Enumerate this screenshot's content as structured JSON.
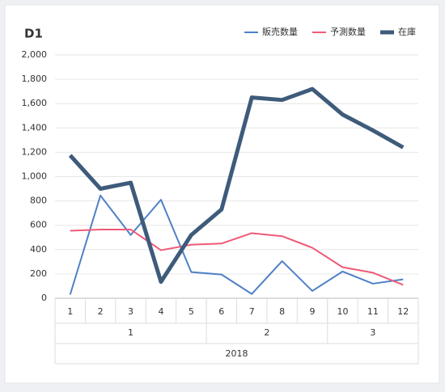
{
  "chart_data": {
    "type": "line",
    "title": "D1",
    "categories": [
      "1",
      "2",
      "3",
      "4",
      "5",
      "6",
      "7",
      "8",
      "9",
      "10",
      "11",
      "12"
    ],
    "groups": [
      {
        "label": "1",
        "span": 5
      },
      {
        "label": "2",
        "span": 4
      },
      {
        "label": "3",
        "span": 3
      }
    ],
    "year": "2018",
    "series": [
      {
        "name": "販売数量",
        "color": "#4f80c7",
        "width": 2,
        "values": [
          30,
          845,
          520,
          810,
          215,
          195,
          35,
          305,
          60,
          220,
          120,
          155
        ]
      },
      {
        "name": "予測数量",
        "color": "#ee5a78",
        "width": 2,
        "values": [
          555,
          565,
          565,
          395,
          440,
          450,
          535,
          510,
          415,
          255,
          210,
          110
        ]
      },
      {
        "name": "在庫",
        "color": "#3e5b7a",
        "width": 5,
        "values": [
          1175,
          900,
          950,
          135,
          520,
          730,
          1650,
          1630,
          1720,
          1510,
          1380,
          1240
        ]
      }
    ],
    "ylim": [
      0,
      2000
    ],
    "yticks": [
      0,
      200,
      400,
      600,
      800,
      {
        "value": 1000,
        "label": "1,000"
      },
      {
        "value": 1200,
        "label": "1,200"
      },
      {
        "value": 1400,
        "label": "1,400"
      },
      {
        "value": 1600,
        "label": "1,600"
      },
      {
        "value": 1800,
        "label": "1,800"
      },
      {
        "value": 2000,
        "label": "2,000"
      }
    ],
    "grid": true,
    "legend": "top-right"
  }
}
